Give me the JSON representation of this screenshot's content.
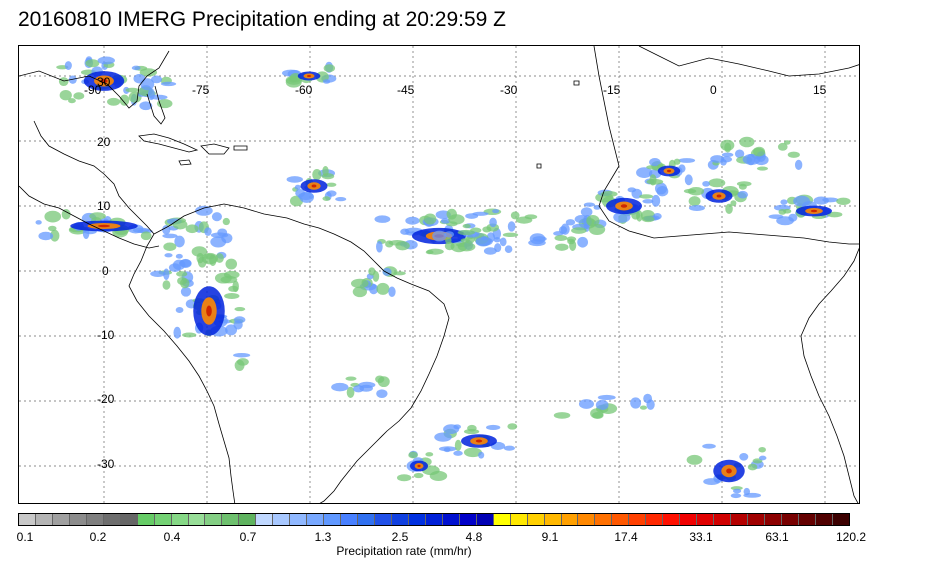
{
  "title": "20160810 IMERG Precipitation ending at 20:29:59 Z",
  "lon_labels": [
    "-90",
    "-75",
    "-60",
    "-45",
    "-30",
    "-15",
    "0",
    "15"
  ],
  "lat_labels": [
    "30",
    "20",
    "10",
    "0",
    "-10",
    "-20",
    "-30"
  ],
  "colorbar": {
    "label": "Precipitation rate (mm/hr)",
    "ticks": [
      "0.1",
      "0.2",
      "0.4",
      "0.7",
      "1.3",
      "2.5",
      "4.8",
      "9.1",
      "17.4",
      "33.1",
      "63.1",
      "120.2"
    ],
    "colors": [
      "#c8c8c8",
      "#b4b4b4",
      "#a0a0a0",
      "#8c8c8c",
      "#7f7f7f",
      "#6e6e6e",
      "#666666",
      "#66cc66",
      "#74d274",
      "#86d886",
      "#98de98",
      "#84cf84",
      "#6ec06e",
      "#5fb35f",
      "#c0d8ff",
      "#a8c8ff",
      "#90b8ff",
      "#78a8ff",
      "#6098ff",
      "#4880ff",
      "#3070f0",
      "#2050e8",
      "#1040e0",
      "#0030e0",
      "#0020d8",
      "#0010d0",
      "#0000c8",
      "#0000b4",
      "#ffff00",
      "#ffe800",
      "#ffd000",
      "#ffb800",
      "#ffa000",
      "#ff8800",
      "#ff7000",
      "#ff5800",
      "#ff4000",
      "#ff2800",
      "#ff1000",
      "#f00000",
      "#e00000",
      "#d00000",
      "#b40000",
      "#a00000",
      "#8c0000",
      "#780000",
      "#640000",
      "#500000",
      "#3c0000"
    ]
  },
  "colors": {
    "coast": "#000000",
    "grid": "#666666",
    "light": "#77c777",
    "mid": "#6699ff",
    "heavy": "#0022dd",
    "intense": "#ff8800",
    "extreme": "#cc2200"
  }
}
